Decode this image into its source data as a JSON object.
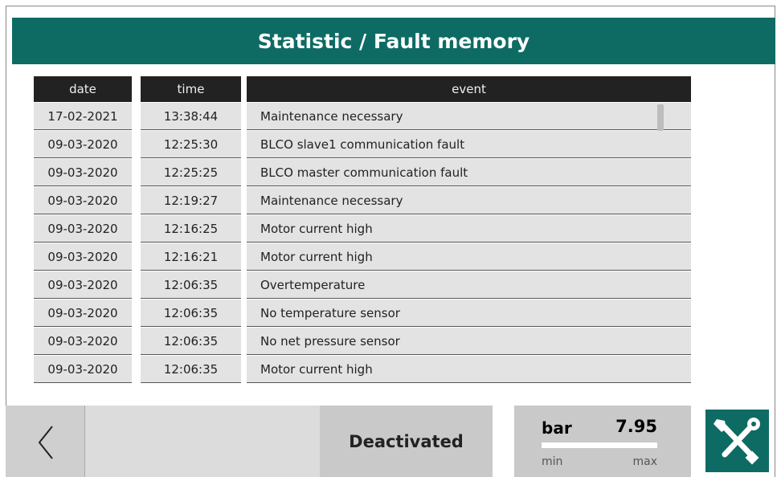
{
  "header": {
    "title": "Statistic / Fault memory"
  },
  "table": {
    "columns": [
      "date",
      "time",
      "event"
    ],
    "rows": [
      [
        "17-02-2021",
        "13:38:44",
        "Maintenance necessary"
      ],
      [
        "09-03-2020",
        "12:25:30",
        "BLCO slave1 communication fault"
      ],
      [
        "09-03-2020",
        "12:25:25",
        "BLCO master communication fault"
      ],
      [
        "09-03-2020",
        "12:19:27",
        "Maintenance necessary"
      ],
      [
        "09-03-2020",
        "12:16:25",
        "Motor current high"
      ],
      [
        "09-03-2020",
        "12:16:21",
        "Motor current high"
      ],
      [
        "09-03-2020",
        "12:06:35",
        "Overtemperature"
      ],
      [
        "09-03-2020",
        "12:06:35",
        "No temperature sensor"
      ],
      [
        "09-03-2020",
        "12:06:35",
        "No net pressure sensor"
      ],
      [
        "09-03-2020",
        "12:06:35",
        "Motor current high"
      ]
    ]
  },
  "footer": {
    "status": "Deactivated",
    "gauge": {
      "unit": "bar",
      "value": 7.95,
      "min_label": "min",
      "max_label": "max"
    }
  }
}
